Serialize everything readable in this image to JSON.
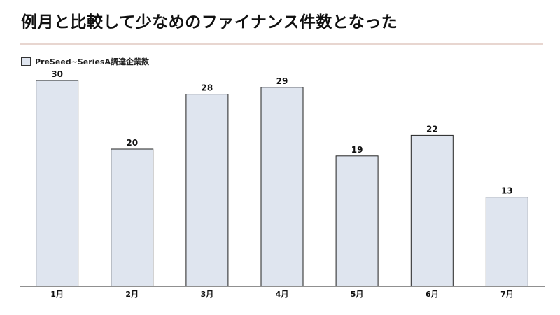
{
  "title": "例月と比較して少なめのファイナンス件数となった",
  "colors": {
    "bar_fill": "#dfe5ef",
    "bar_stroke": "#222222",
    "rule": "#e8d6d0",
    "text": "#111111"
  },
  "chart_data": {
    "type": "bar",
    "categories": [
      "1月",
      "2月",
      "3月",
      "4月",
      "5月",
      "6月",
      "7月"
    ],
    "series": [
      {
        "name": "PreSeed~SeriesA調達企業数",
        "values": [
          30,
          20,
          28,
          29,
          19,
          22,
          13
        ]
      }
    ],
    "title": "",
    "xlabel": "",
    "ylabel": "",
    "ylim": [
      0,
      30
    ],
    "grid": false,
    "legend": "top-left",
    "data_labels": true
  }
}
